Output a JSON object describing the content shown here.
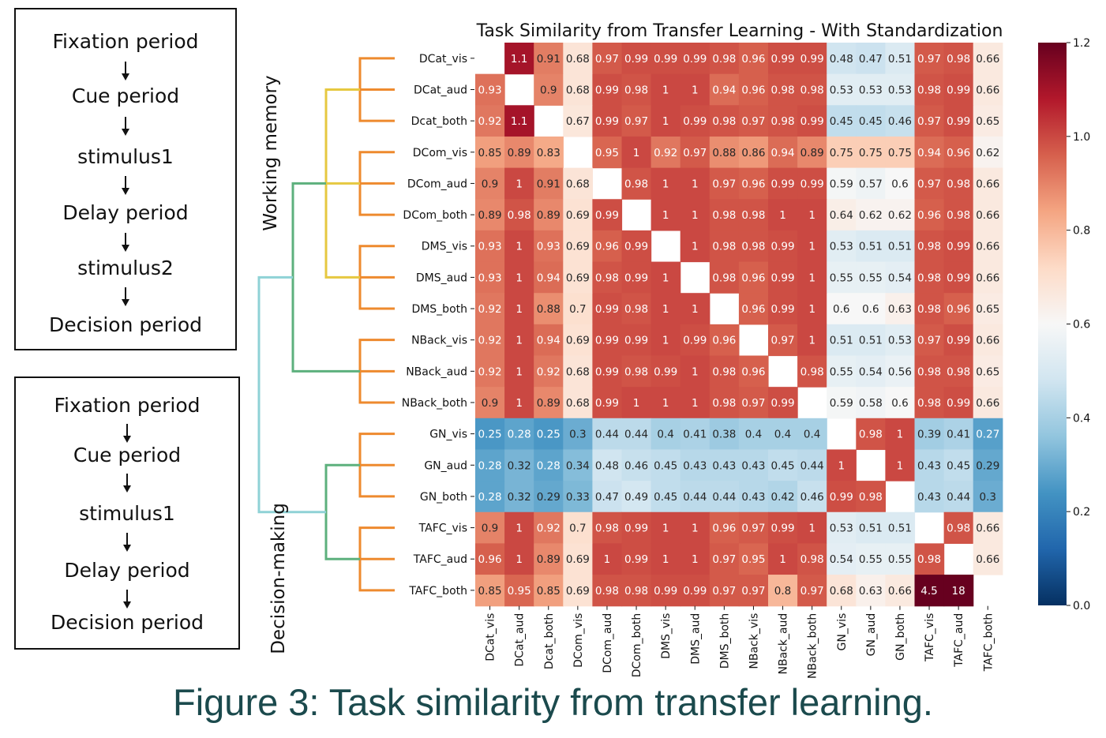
{
  "flowcharts": [
    {
      "steps": [
        "Fixation period",
        "Cue period",
        "stimulus1",
        "Delay period",
        "stimulus2",
        "Decision period"
      ]
    },
    {
      "steps": [
        "Fixation period",
        "Cue period",
        "stimulus1",
        "Delay period",
        "Decision period"
      ]
    }
  ],
  "caption": "Figure 3: Task similarity from transfer learning.",
  "group_labels": {
    "working_memory": "Working memory",
    "decision_making": "Decision-making"
  },
  "colors": {
    "leaf_branch": "#ee8a2e",
    "wm_subcluster": "#e6c840",
    "cluster": "#5db07d",
    "root": "#8fd2d6",
    "caption": "#1b4a4d"
  },
  "chart_data": {
    "type": "heatmap",
    "title": "Task Similarity from Transfer Learning - With Standardization",
    "labels": [
      "DCat_vis",
      "DCat_aud",
      "Dcat_both",
      "DCom_vis",
      "DCom_aud",
      "DCom_both",
      "DMS_vis",
      "DMS_aud",
      "DMS_both",
      "NBack_vis",
      "NBack_aud",
      "NBack_both",
      "GN_vis",
      "GN_aud",
      "GN_both",
      "TAFC_vis",
      "TAFC_aud",
      "TAFC_both"
    ],
    "cells": [
      [
        "",
        "1.1",
        "0.91",
        "0.68",
        "0.97",
        "0.99",
        "0.99",
        "0.99",
        "0.98",
        "0.96",
        "0.99",
        "0.99",
        "0.48",
        "0.47",
        "0.51",
        "0.97",
        "0.98",
        "0.66"
      ],
      [
        "0.93",
        "",
        "0.9",
        "0.68",
        "0.99",
        "0.98",
        "1",
        "1",
        "0.94",
        "0.96",
        "0.98",
        "0.98",
        "0.53",
        "0.53",
        "0.53",
        "0.98",
        "0.99",
        "0.66"
      ],
      [
        "0.92",
        "1.1",
        "",
        "0.67",
        "0.99",
        "0.97",
        "1",
        "0.99",
        "0.98",
        "0.97",
        "0.98",
        "0.99",
        "0.45",
        "0.45",
        "0.46",
        "0.97",
        "0.99",
        "0.65"
      ],
      [
        "0.85",
        "0.89",
        "0.83",
        "",
        "0.95",
        "1",
        "0.92",
        "0.97",
        "0.88",
        "0.86",
        "0.94",
        "0.89",
        "0.75",
        "0.75",
        "0.75",
        "0.94",
        "0.96",
        "0.62"
      ],
      [
        "0.9",
        "1",
        "0.91",
        "0.68",
        "",
        "0.98",
        "1",
        "1",
        "0.97",
        "0.96",
        "0.99",
        "0.99",
        "0.59",
        "0.57",
        "0.6",
        "0.97",
        "0.98",
        "0.66"
      ],
      [
        "0.89",
        "0.98",
        "0.89",
        "0.69",
        "0.99",
        "",
        "1",
        "1",
        "0.98",
        "0.98",
        "1",
        "1",
        "0.64",
        "0.62",
        "0.62",
        "0.96",
        "0.98",
        "0.66"
      ],
      [
        "0.93",
        "1",
        "0.93",
        "0.69",
        "0.96",
        "0.99",
        "",
        "1",
        "0.98",
        "0.98",
        "0.99",
        "1",
        "0.53",
        "0.51",
        "0.51",
        "0.98",
        "0.99",
        "0.66"
      ],
      [
        "0.93",
        "1",
        "0.94",
        "0.69",
        "0.98",
        "0.99",
        "1",
        "",
        "0.98",
        "0.96",
        "0.99",
        "1",
        "0.55",
        "0.55",
        "0.54",
        "0.98",
        "0.99",
        "0.66"
      ],
      [
        "0.92",
        "1",
        "0.88",
        "0.7",
        "0.99",
        "0.98",
        "1",
        "1",
        "",
        "0.96",
        "0.99",
        "1",
        "0.6",
        "0.6",
        "0.63",
        "0.98",
        "0.96",
        "0.65"
      ],
      [
        "0.92",
        "1",
        "0.94",
        "0.69",
        "0.99",
        "0.99",
        "1",
        "0.99",
        "0.96",
        "",
        "0.97",
        "1",
        "0.51",
        "0.51",
        "0.53",
        "0.97",
        "0.99",
        "0.66"
      ],
      [
        "0.92",
        "1",
        "0.92",
        "0.68",
        "0.99",
        "0.98",
        "0.99",
        "1",
        "0.98",
        "0.96",
        "",
        "0.98",
        "0.55",
        "0.54",
        "0.56",
        "0.98",
        "0.98",
        "0.65"
      ],
      [
        "0.9",
        "1",
        "0.89",
        "0.68",
        "0.99",
        "1",
        "1",
        "1",
        "0.98",
        "0.97",
        "0.99",
        "",
        "0.59",
        "0.58",
        "0.6",
        "0.98",
        "0.99",
        "0.66"
      ],
      [
        "0.25",
        "0.28",
        "0.25",
        "0.3",
        "0.44",
        "0.44",
        "0.4",
        "0.41",
        "0.38",
        "0.4",
        "0.4",
        "0.4",
        "",
        "0.98",
        "1",
        "0.39",
        "0.41",
        "0.27"
      ],
      [
        "0.28",
        "0.32",
        "0.28",
        "0.34",
        "0.48",
        "0.46",
        "0.45",
        "0.43",
        "0.43",
        "0.43",
        "0.45",
        "0.44",
        "1",
        "",
        "1",
        "0.43",
        "0.45",
        "0.29"
      ],
      [
        "0.28",
        "0.32",
        "0.29",
        "0.33",
        "0.47",
        "0.49",
        "0.45",
        "0.44",
        "0.44",
        "0.43",
        "0.42",
        "0.46",
        "0.99",
        "0.98",
        "",
        "0.43",
        "0.44",
        "0.3"
      ],
      [
        "0.9",
        "1",
        "0.92",
        "0.7",
        "0.98",
        "0.99",
        "1",
        "1",
        "0.96",
        "0.97",
        "0.99",
        "1",
        "0.53",
        "0.51",
        "0.51",
        "",
        "0.98",
        "0.66"
      ],
      [
        "0.96",
        "1",
        "0.89",
        "0.69",
        "1",
        "0.99",
        "1",
        "1",
        "0.97",
        "0.95",
        "1",
        "0.98",
        "0.54",
        "0.55",
        "0.55",
        "0.98",
        "",
        "0.66"
      ],
      [
        "0.85",
        "0.95",
        "0.85",
        "0.69",
        "0.98",
        "0.98",
        "0.99",
        "0.99",
        "0.97",
        "0.97",
        "0.8",
        "0.97",
        "0.68",
        "0.63",
        "0.66",
        "4.5",
        "18",
        ""
      ]
    ],
    "colorbar": {
      "min": 0.0,
      "max": 1.2,
      "ticks": [
        "0.0",
        "0.2",
        "0.4",
        "0.6",
        "0.8",
        "1.0",
        "1.2"
      ],
      "colormap": "RdBu_r"
    },
    "grid": false,
    "legend": "colorbar-right"
  }
}
